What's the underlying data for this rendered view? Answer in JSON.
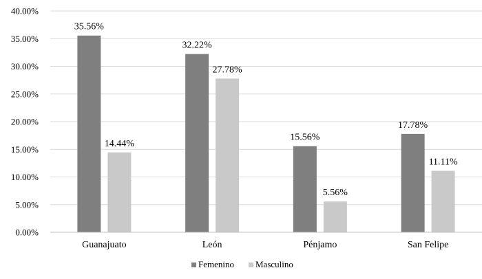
{
  "chart_data": {
    "type": "bar",
    "title": "",
    "xlabel": "",
    "ylabel": "",
    "categories": [
      "Guanajuato",
      "León",
      "Pénjamo",
      "San Felipe"
    ],
    "series": [
      {
        "name": "Femenino",
        "color": "#7f7f7f",
        "values": [
          35.56,
          32.22,
          15.56,
          17.78
        ],
        "labels": [
          "35.56%",
          "32.22%",
          "15.56%",
          "17.78%"
        ]
      },
      {
        "name": "Masculino",
        "color": "#c9c9c9",
        "values": [
          14.44,
          27.78,
          5.56,
          11.11
        ],
        "labels": [
          "14.44%",
          "27.78%",
          "5.56%",
          "11.11%"
        ]
      }
    ],
    "ylim": [
      0,
      40
    ],
    "yticks": [
      0,
      5,
      10,
      15,
      20,
      25,
      30,
      35,
      40
    ],
    "ytick_labels": [
      "0.00%",
      "5.00%",
      "10.00%",
      "15.00%",
      "20.00%",
      "25.00%",
      "30.00%",
      "35.00%",
      "40.00%"
    ],
    "grid": true,
    "legend_position": "bottom",
    "colors": {
      "gridline": "#d9d9d9",
      "axis": "#bfbfbf"
    }
  }
}
